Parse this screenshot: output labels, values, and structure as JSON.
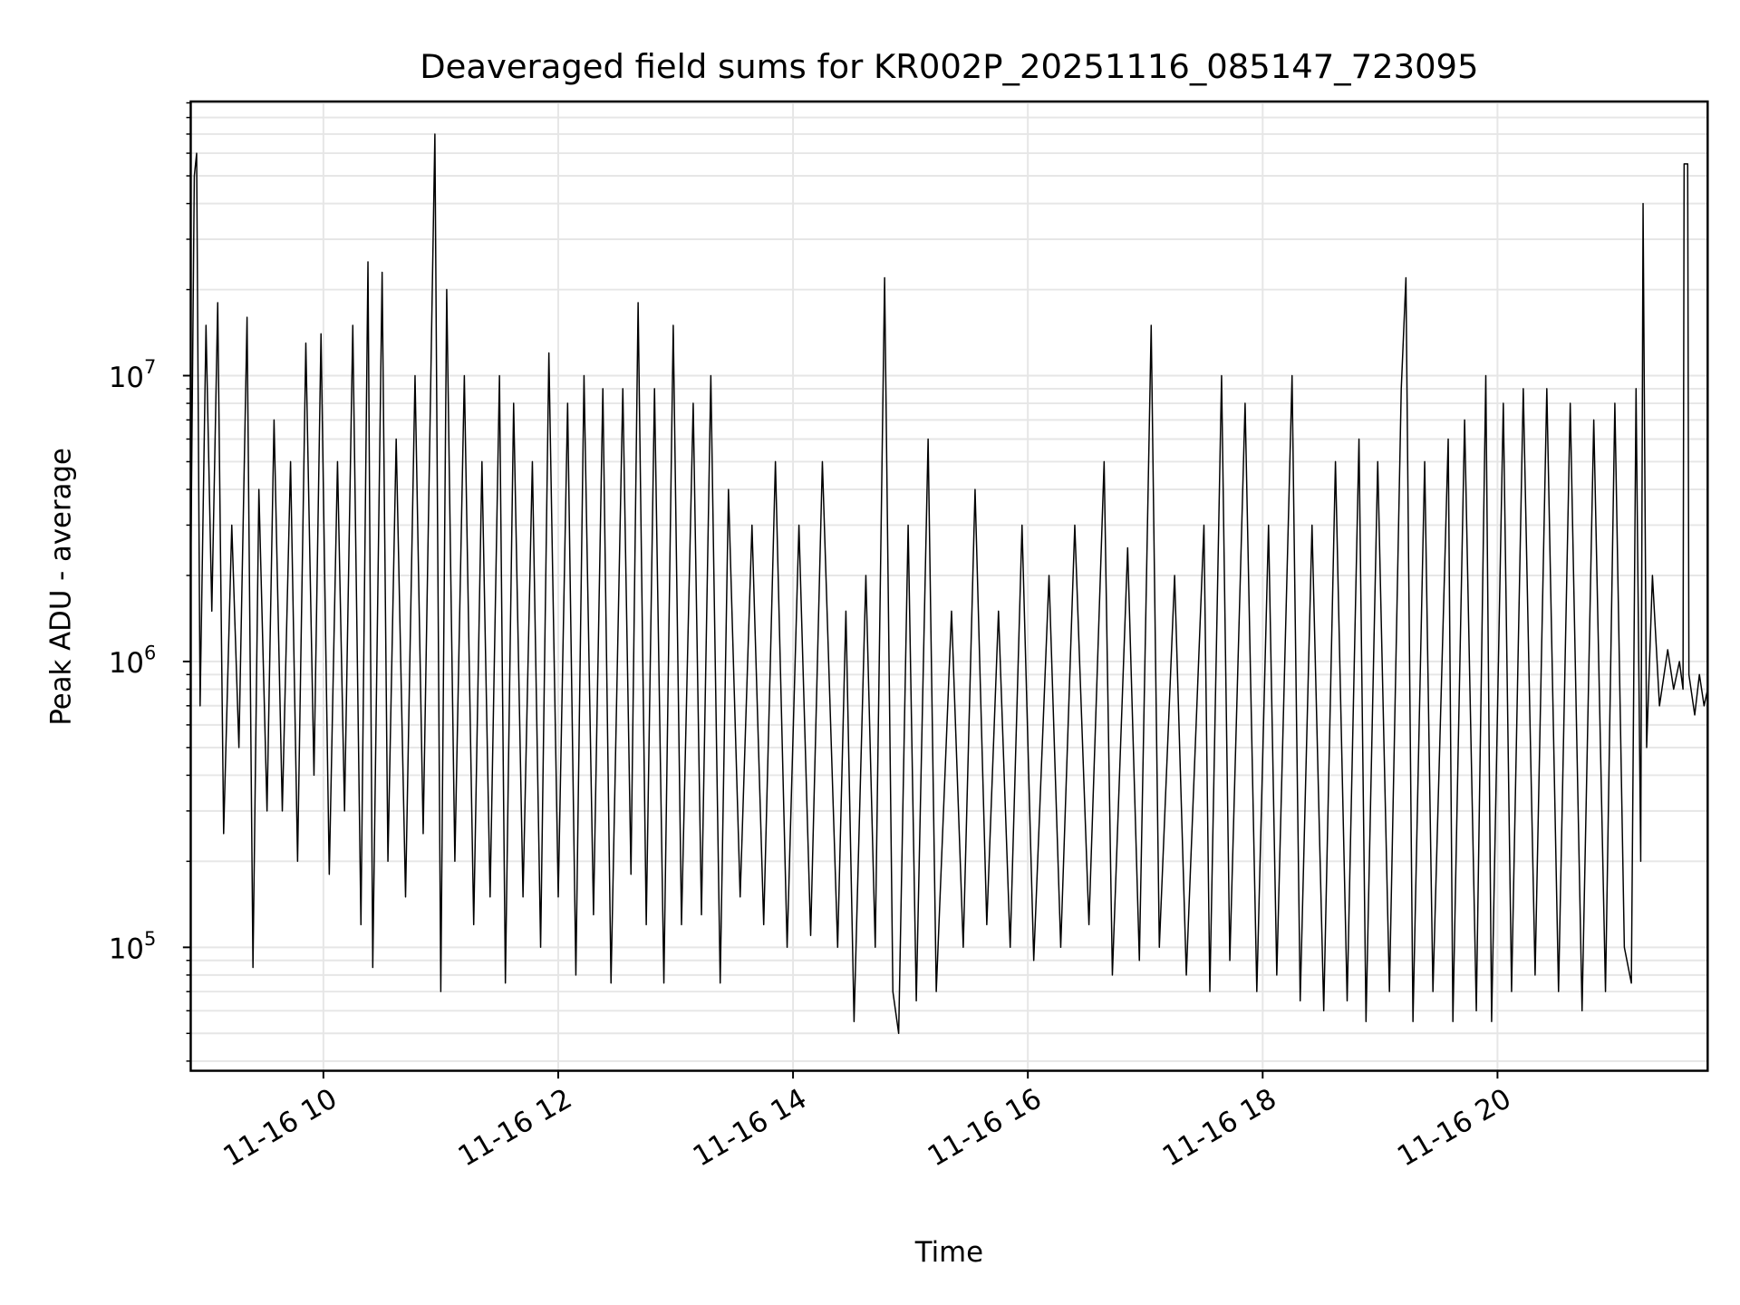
{
  "chart_data": {
    "type": "line",
    "title": "Deaveraged field sums for KR002P_20251116_085147_723095",
    "xlabel": "Time",
    "ylabel": "Peak ADU - average",
    "xunit": "hours on 2025-11-16",
    "xlim": [
      8.87,
      21.79
    ],
    "ylim": [
      37000,
      91000000
    ],
    "yscale": "log",
    "grid": true,
    "line_color": "#000000",
    "x_ticks": [
      {
        "value": 10,
        "label": "11-16 10"
      },
      {
        "value": 12,
        "label": "11-16 12"
      },
      {
        "value": 14,
        "label": "11-16 14"
      },
      {
        "value": 16,
        "label": "11-16 16"
      },
      {
        "value": 18,
        "label": "11-16 18"
      },
      {
        "value": 20,
        "label": "11-16 20"
      }
    ],
    "y_ticks": [
      {
        "value": 100000,
        "base": "10",
        "exp": "5"
      },
      {
        "value": 1000000,
        "base": "10",
        "exp": "6"
      },
      {
        "value": 10000000,
        "base": "10",
        "exp": "7"
      }
    ],
    "points": [
      [
        8.87,
        2000000.0
      ],
      [
        8.9,
        50000000.0
      ],
      [
        8.92,
        60000000.0
      ],
      [
        8.95,
        700000.0
      ],
      [
        9.0,
        15000000.0
      ],
      [
        9.05,
        1500000.0
      ],
      [
        9.1,
        18000000.0
      ],
      [
        9.15,
        250000.0
      ],
      [
        9.22,
        3000000.0
      ],
      [
        9.28,
        500000.0
      ],
      [
        9.35,
        16000000.0
      ],
      [
        9.4,
        85000.0
      ],
      [
        9.45,
        4000000.0
      ],
      [
        9.52,
        300000.0
      ],
      [
        9.58,
        7000000.0
      ],
      [
        9.65,
        300000.0
      ],
      [
        9.72,
        5000000.0
      ],
      [
        9.78,
        200000.0
      ],
      [
        9.85,
        13000000.0
      ],
      [
        9.92,
        400000.0
      ],
      [
        9.98,
        14000000.0
      ],
      [
        10.05,
        180000.0
      ],
      [
        10.12,
        5000000.0
      ],
      [
        10.18,
        300000.0
      ],
      [
        10.25,
        15000000.0
      ],
      [
        10.32,
        120000.0
      ],
      [
        10.38,
        25000000.0
      ],
      [
        10.42,
        85000.0
      ],
      [
        10.5,
        23000000.0
      ],
      [
        10.55,
        200000.0
      ],
      [
        10.62,
        6000000.0
      ],
      [
        10.7,
        150000.0
      ],
      [
        10.78,
        10000000.0
      ],
      [
        10.85,
        250000.0
      ],
      [
        10.95,
        70000000.0
      ],
      [
        11.0,
        70000.0
      ],
      [
        11.05,
        20000000.0
      ],
      [
        11.12,
        200000.0
      ],
      [
        11.2,
        10000000.0
      ],
      [
        11.28,
        120000.0
      ],
      [
        11.35,
        5000000.0
      ],
      [
        11.42,
        150000.0
      ],
      [
        11.5,
        10000000.0
      ],
      [
        11.55,
        75000.0
      ],
      [
        11.62,
        8000000.0
      ],
      [
        11.7,
        150000.0
      ],
      [
        11.78,
        5000000.0
      ],
      [
        11.85,
        100000.0
      ],
      [
        11.92,
        12000000.0
      ],
      [
        12.0,
        150000.0
      ],
      [
        12.08,
        8000000.0
      ],
      [
        12.15,
        80000.0
      ],
      [
        12.22,
        10000000.0
      ],
      [
        12.3,
        130000.0
      ],
      [
        12.38,
        9000000.0
      ],
      [
        12.45,
        75000.0
      ],
      [
        12.55,
        9000000.0
      ],
      [
        12.62,
        180000.0
      ],
      [
        12.68,
        18000000.0
      ],
      [
        12.75,
        120000.0
      ],
      [
        12.82,
        9000000.0
      ],
      [
        12.9,
        75000.0
      ],
      [
        12.98,
        15000000.0
      ],
      [
        13.05,
        120000.0
      ],
      [
        13.15,
        8000000.0
      ],
      [
        13.22,
        130000.0
      ],
      [
        13.3,
        10000000.0
      ],
      [
        13.38,
        75000.0
      ],
      [
        13.45,
        4000000.0
      ],
      [
        13.55,
        150000.0
      ],
      [
        13.65,
        3000000.0
      ],
      [
        13.75,
        120000.0
      ],
      [
        13.85,
        5000000.0
      ],
      [
        13.95,
        100000.0
      ],
      [
        14.05,
        3000000.0
      ],
      [
        14.15,
        110000.0
      ],
      [
        14.25,
        5000000.0
      ],
      [
        14.38,
        100000.0
      ],
      [
        14.45,
        1500000.0
      ],
      [
        14.52,
        55000.0
      ],
      [
        14.62,
        2000000.0
      ],
      [
        14.7,
        100000.0
      ],
      [
        14.78,
        22000000.0
      ],
      [
        14.85,
        70000.0
      ],
      [
        14.9,
        50000.0
      ],
      [
        14.98,
        3000000.0
      ],
      [
        15.05,
        65000.0
      ],
      [
        15.15,
        6000000.0
      ],
      [
        15.22,
        70000.0
      ],
      [
        15.35,
        1500000.0
      ],
      [
        15.45,
        100000.0
      ],
      [
        15.55,
        4000000.0
      ],
      [
        15.65,
        120000.0
      ],
      [
        15.75,
        1500000.0
      ],
      [
        15.85,
        100000.0
      ],
      [
        15.95,
        3000000.0
      ],
      [
        16.05,
        90000.0
      ],
      [
        16.18,
        2000000.0
      ],
      [
        16.28,
        100000.0
      ],
      [
        16.4,
        3000000.0
      ],
      [
        16.52,
        120000.0
      ],
      [
        16.65,
        5000000.0
      ],
      [
        16.72,
        80000.0
      ],
      [
        16.85,
        2500000.0
      ],
      [
        16.95,
        90000.0
      ],
      [
        17.05,
        15000000.0
      ],
      [
        17.12,
        100000.0
      ],
      [
        17.25,
        2000000.0
      ],
      [
        17.35,
        80000.0
      ],
      [
        17.5,
        3000000.0
      ],
      [
        17.55,
        70000.0
      ],
      [
        17.65,
        10000000.0
      ],
      [
        17.72,
        90000.0
      ],
      [
        17.85,
        8000000.0
      ],
      [
        17.95,
        70000.0
      ],
      [
        18.05,
        3000000.0
      ],
      [
        18.12,
        80000.0
      ],
      [
        18.25,
        10000000.0
      ],
      [
        18.32,
        65000.0
      ],
      [
        18.42,
        3000000.0
      ],
      [
        18.52,
        60000.0
      ],
      [
        18.62,
        5000000.0
      ],
      [
        18.72,
        65000.0
      ],
      [
        18.82,
        6000000.0
      ],
      [
        18.88,
        55000.0
      ],
      [
        18.98,
        5000000.0
      ],
      [
        19.08,
        70000.0
      ],
      [
        19.18,
        9000000.0
      ],
      [
        19.22,
        22000000.0
      ],
      [
        19.28,
        55000.0
      ],
      [
        19.38,
        5000000.0
      ],
      [
        19.45,
        70000.0
      ],
      [
        19.58,
        6000000.0
      ],
      [
        19.62,
        55000.0
      ],
      [
        19.72,
        7000000.0
      ],
      [
        19.82,
        60000.0
      ],
      [
        19.9,
        10000000.0
      ],
      [
        19.95,
        55000.0
      ],
      [
        20.05,
        8000000.0
      ],
      [
        20.12,
        70000.0
      ],
      [
        20.22,
        9000000.0
      ],
      [
        20.32,
        80000.0
      ],
      [
        20.42,
        9000000.0
      ],
      [
        20.52,
        70000.0
      ],
      [
        20.62,
        8000000.0
      ],
      [
        20.72,
        60000.0
      ],
      [
        20.82,
        7000000.0
      ],
      [
        20.92,
        70000.0
      ],
      [
        21.0,
        8000000.0
      ],
      [
        21.08,
        100000.0
      ],
      [
        21.14,
        75000.0
      ],
      [
        21.18,
        9000000.0
      ],
      [
        21.22,
        200000.0
      ],
      [
        21.24,
        40000000.0
      ],
      [
        21.27,
        500000.0
      ],
      [
        21.32,
        2000000.0
      ],
      [
        21.38,
        700000.0
      ],
      [
        21.45,
        1100000.0
      ],
      [
        21.5,
        800000.0
      ],
      [
        21.55,
        1000000.0
      ],
      [
        21.58,
        800000.0
      ],
      [
        21.59,
        55000000.0
      ],
      [
        21.62,
        55000000.0
      ],
      [
        21.63,
        900000.0
      ],
      [
        21.68,
        650000.0
      ],
      [
        21.72,
        900000.0
      ],
      [
        21.76,
        700000.0
      ],
      [
        21.79,
        800000.0
      ]
    ]
  }
}
